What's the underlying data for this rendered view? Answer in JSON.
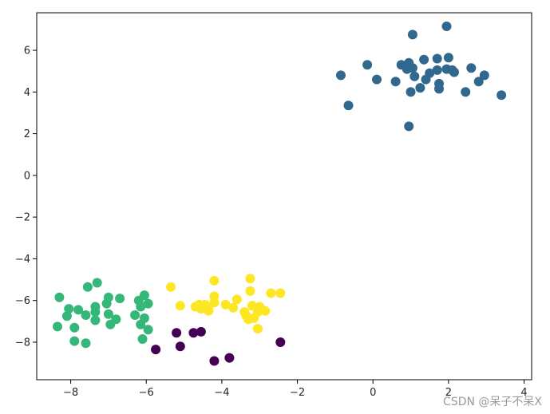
{
  "chart_data": {
    "type": "scatter",
    "xlim": [
      -8.9,
      4.2
    ],
    "ylim": [
      -9.8,
      7.8
    ],
    "x_ticks": [
      -8,
      -6,
      -4,
      -2,
      0,
      2,
      4
    ],
    "y_ticks": [
      -8,
      -6,
      -4,
      -2,
      0,
      2,
      4,
      6
    ],
    "grid": false,
    "colors": {
      "cluster_blue": "#31688e",
      "cluster_green": "#35b779",
      "cluster_yellow": "#fde725",
      "cluster_purple": "#440154"
    },
    "series": [
      {
        "color": "#31688e",
        "points": [
          [
            1.05,
            6.75
          ],
          [
            1.95,
            7.15
          ],
          [
            -0.15,
            5.3
          ],
          [
            0.75,
            5.3
          ],
          [
            0.95,
            5.4
          ],
          [
            1.35,
            5.55
          ],
          [
            1.7,
            5.6
          ],
          [
            2.0,
            5.65
          ],
          [
            0.9,
            5.1
          ],
          [
            1.05,
            5.15
          ],
          [
            1.5,
            4.9
          ],
          [
            1.7,
            5.05
          ],
          [
            1.95,
            5.1
          ],
          [
            2.1,
            5.05
          ],
          [
            2.15,
            4.95
          ],
          [
            2.6,
            5.15
          ],
          [
            -0.85,
            4.8
          ],
          [
            0.1,
            4.6
          ],
          [
            0.6,
            4.5
          ],
          [
            1.1,
            4.75
          ],
          [
            1.4,
            4.6
          ],
          [
            1.75,
            4.4
          ],
          [
            2.8,
            4.5
          ],
          [
            2.95,
            4.8
          ],
          [
            1.25,
            4.2
          ],
          [
            1.0,
            4.0
          ],
          [
            1.75,
            4.15
          ],
          [
            2.45,
            4.0
          ],
          [
            3.4,
            3.85
          ],
          [
            -0.65,
            3.35
          ],
          [
            0.95,
            2.35
          ]
        ]
      },
      {
        "color": "#35b779",
        "points": [
          [
            -7.3,
            -5.15
          ],
          [
            -7.55,
            -5.35
          ],
          [
            -6.05,
            -5.75
          ],
          [
            -8.3,
            -5.85
          ],
          [
            -7.0,
            -5.85
          ],
          [
            -6.7,
            -5.9
          ],
          [
            -6.2,
            -6.0
          ],
          [
            -5.95,
            -6.15
          ],
          [
            -7.05,
            -6.15
          ],
          [
            -8.05,
            -6.4
          ],
          [
            -7.8,
            -6.45
          ],
          [
            -7.35,
            -6.3
          ],
          [
            -6.15,
            -6.3
          ],
          [
            -7.35,
            -6.55
          ],
          [
            -8.1,
            -6.75
          ],
          [
            -7.6,
            -6.7
          ],
          [
            -7.0,
            -6.65
          ],
          [
            -6.3,
            -6.7
          ],
          [
            -6.05,
            -6.85
          ],
          [
            -6.8,
            -6.9
          ],
          [
            -7.35,
            -6.95
          ],
          [
            -6.95,
            -7.15
          ],
          [
            -6.15,
            -7.15
          ],
          [
            -8.35,
            -7.25
          ],
          [
            -7.9,
            -7.3
          ],
          [
            -5.95,
            -7.4
          ],
          [
            -7.9,
            -7.95
          ],
          [
            -6.1,
            -7.85
          ],
          [
            -7.6,
            -8.05
          ]
        ]
      },
      {
        "color": "#fde725",
        "points": [
          [
            -3.25,
            -4.95
          ],
          [
            -4.2,
            -5.05
          ],
          [
            -5.35,
            -5.35
          ],
          [
            -3.25,
            -5.55
          ],
          [
            -2.7,
            -5.65
          ],
          [
            -2.45,
            -5.65
          ],
          [
            -4.2,
            -5.8
          ],
          [
            -3.6,
            -5.95
          ],
          [
            -4.2,
            -6.1
          ],
          [
            -5.1,
            -6.25
          ],
          [
            -4.6,
            -6.2
          ],
          [
            -4.45,
            -6.2
          ],
          [
            -3.9,
            -6.2
          ],
          [
            -4.55,
            -6.4
          ],
          [
            -4.7,
            -6.3
          ],
          [
            -4.35,
            -6.35
          ],
          [
            -3.7,
            -6.35
          ],
          [
            -3.2,
            -6.25
          ],
          [
            -3.0,
            -6.3
          ],
          [
            -2.85,
            -6.5
          ],
          [
            -3.05,
            -6.55
          ],
          [
            -3.4,
            -6.55
          ],
          [
            -3.35,
            -6.75
          ],
          [
            -3.15,
            -6.85
          ],
          [
            -3.3,
            -6.9
          ],
          [
            -4.35,
            -6.5
          ],
          [
            -3.05,
            -7.35
          ]
        ]
      },
      {
        "color": "#440154",
        "points": [
          [
            -5.2,
            -7.55
          ],
          [
            -4.75,
            -7.55
          ],
          [
            -4.55,
            -7.5
          ],
          [
            -5.1,
            -8.2
          ],
          [
            -5.75,
            -8.35
          ],
          [
            -2.45,
            -8.0
          ],
          [
            -4.2,
            -8.9
          ],
          [
            -3.8,
            -8.75
          ]
        ]
      }
    ]
  },
  "watermark": "CSDN @呆子不呆X"
}
